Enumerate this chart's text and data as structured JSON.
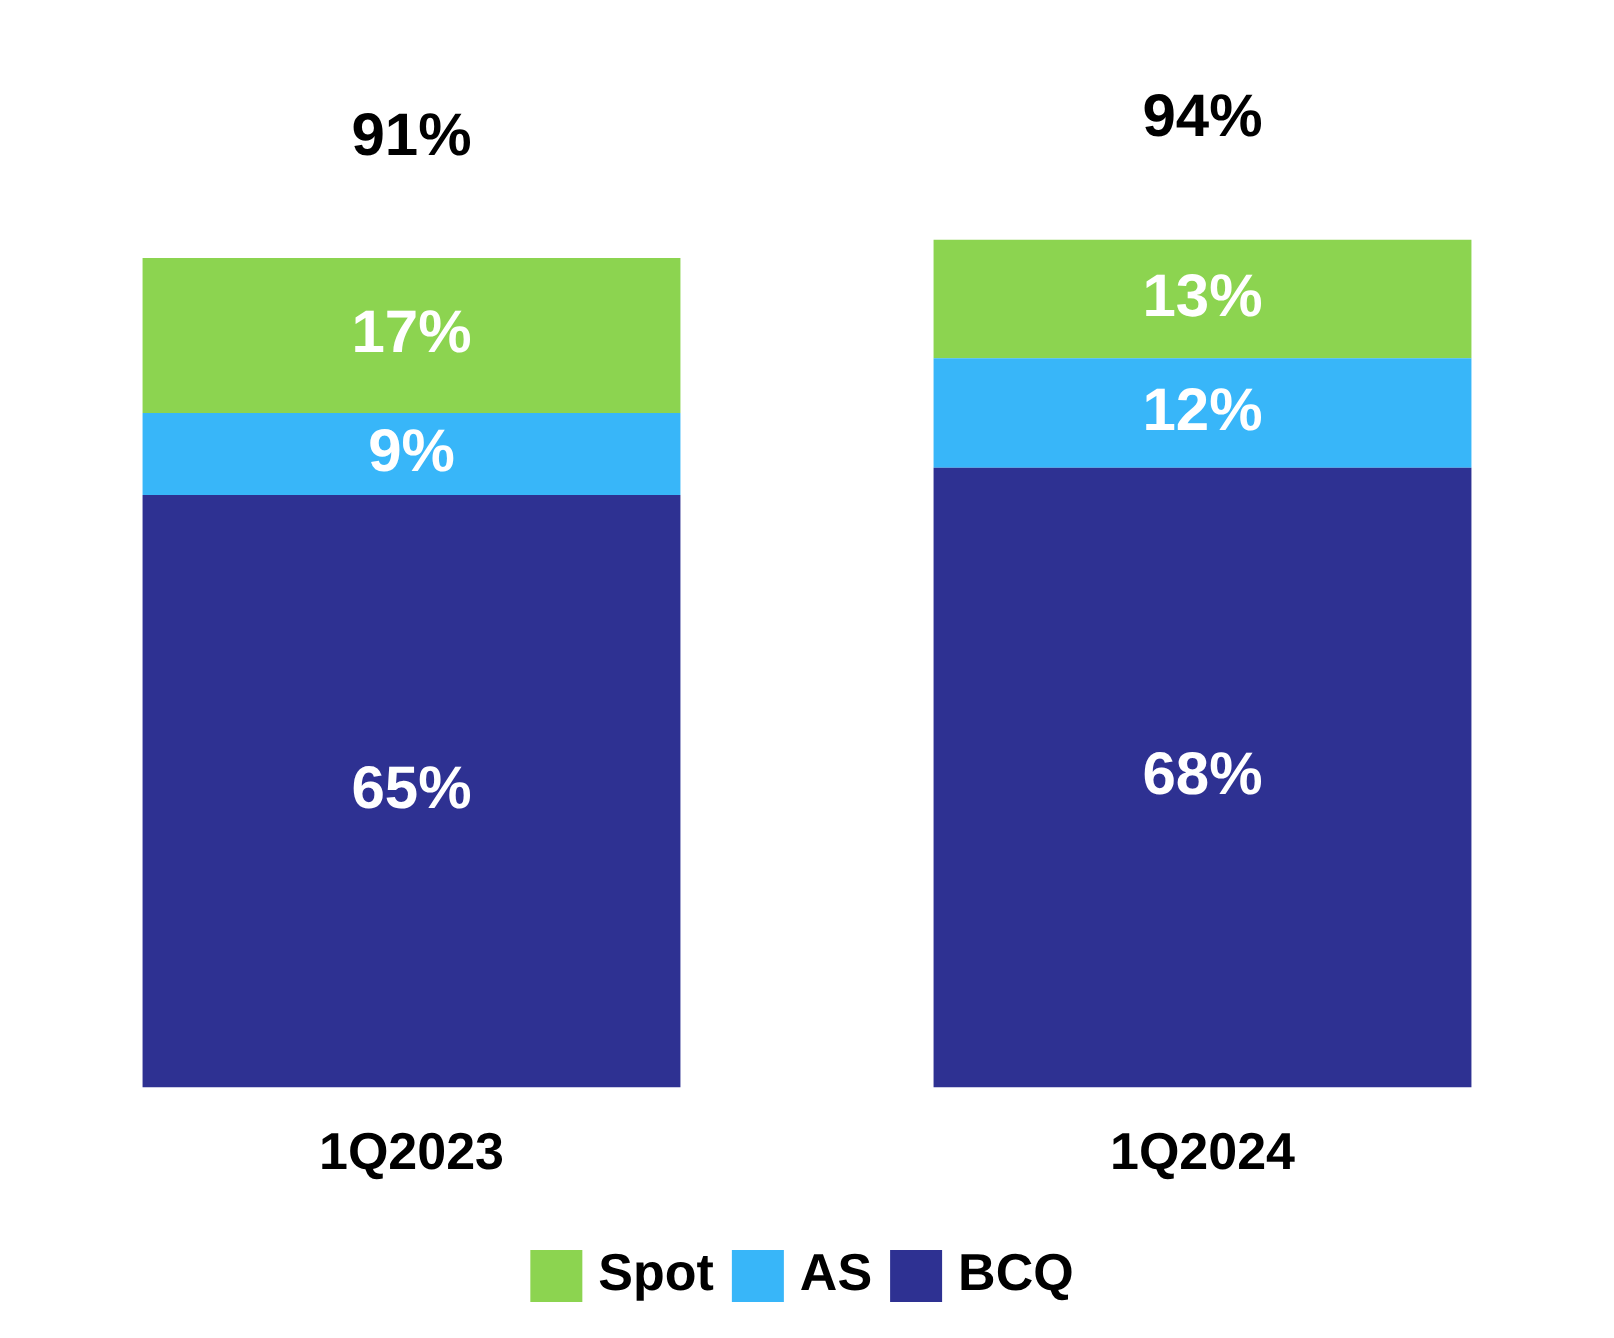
{
  "chart_data": {
    "type": "bar",
    "stacked": true,
    "categories": [
      "1Q2023",
      "1Q2024"
    ],
    "series": [
      {
        "name": "BCQ",
        "color": "#2e3192",
        "values": [
          65,
          68
        ],
        "value_labels": [
          "65%",
          "68%"
        ]
      },
      {
        "name": "AS",
        "color": "#38b6f9",
        "values": [
          9,
          12
        ],
        "value_labels": [
          "9%",
          "12%"
        ]
      },
      {
        "name": "Spot",
        "color": "#8cd450",
        "values": [
          17,
          13
        ],
        "value_labels": [
          "17%",
          "13%"
        ]
      }
    ],
    "totals": [
      "91%",
      "94%"
    ],
    "legend": "bottom",
    "grid": false
  }
}
